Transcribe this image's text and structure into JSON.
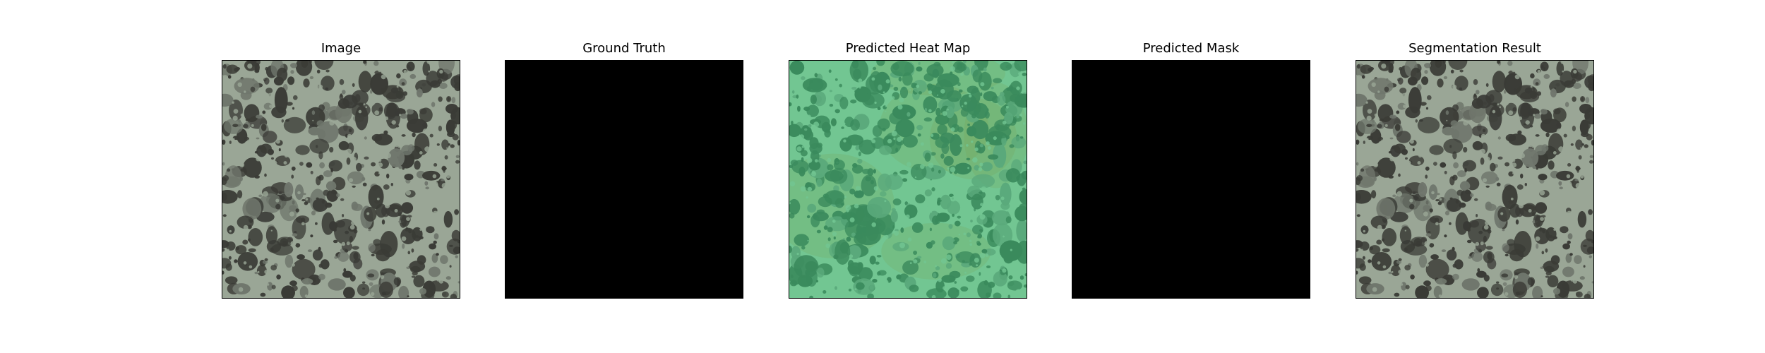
{
  "figure": {
    "panels": [
      {
        "title": "Image",
        "kind": "texture",
        "palette": {
          "base": "#9aa696",
          "blob": "#3a3b36",
          "edge": "#6f766c"
        }
      },
      {
        "title": "Ground Truth",
        "kind": "solid",
        "palette": {
          "base": "#000000"
        }
      },
      {
        "title": "Predicted Heat Map",
        "kind": "texture",
        "palette": {
          "base": "#72c692",
          "blob": "#3a8a5c",
          "edge": "#5aa97b",
          "tint": "#7a9a4a"
        }
      },
      {
        "title": "Predicted Mask",
        "kind": "solid",
        "palette": {
          "base": "#000000"
        }
      },
      {
        "title": "Segmentation Result",
        "kind": "texture",
        "palette": {
          "base": "#9aa696",
          "blob": "#3a3b36",
          "edge": "#6f766c"
        }
      }
    ]
  }
}
